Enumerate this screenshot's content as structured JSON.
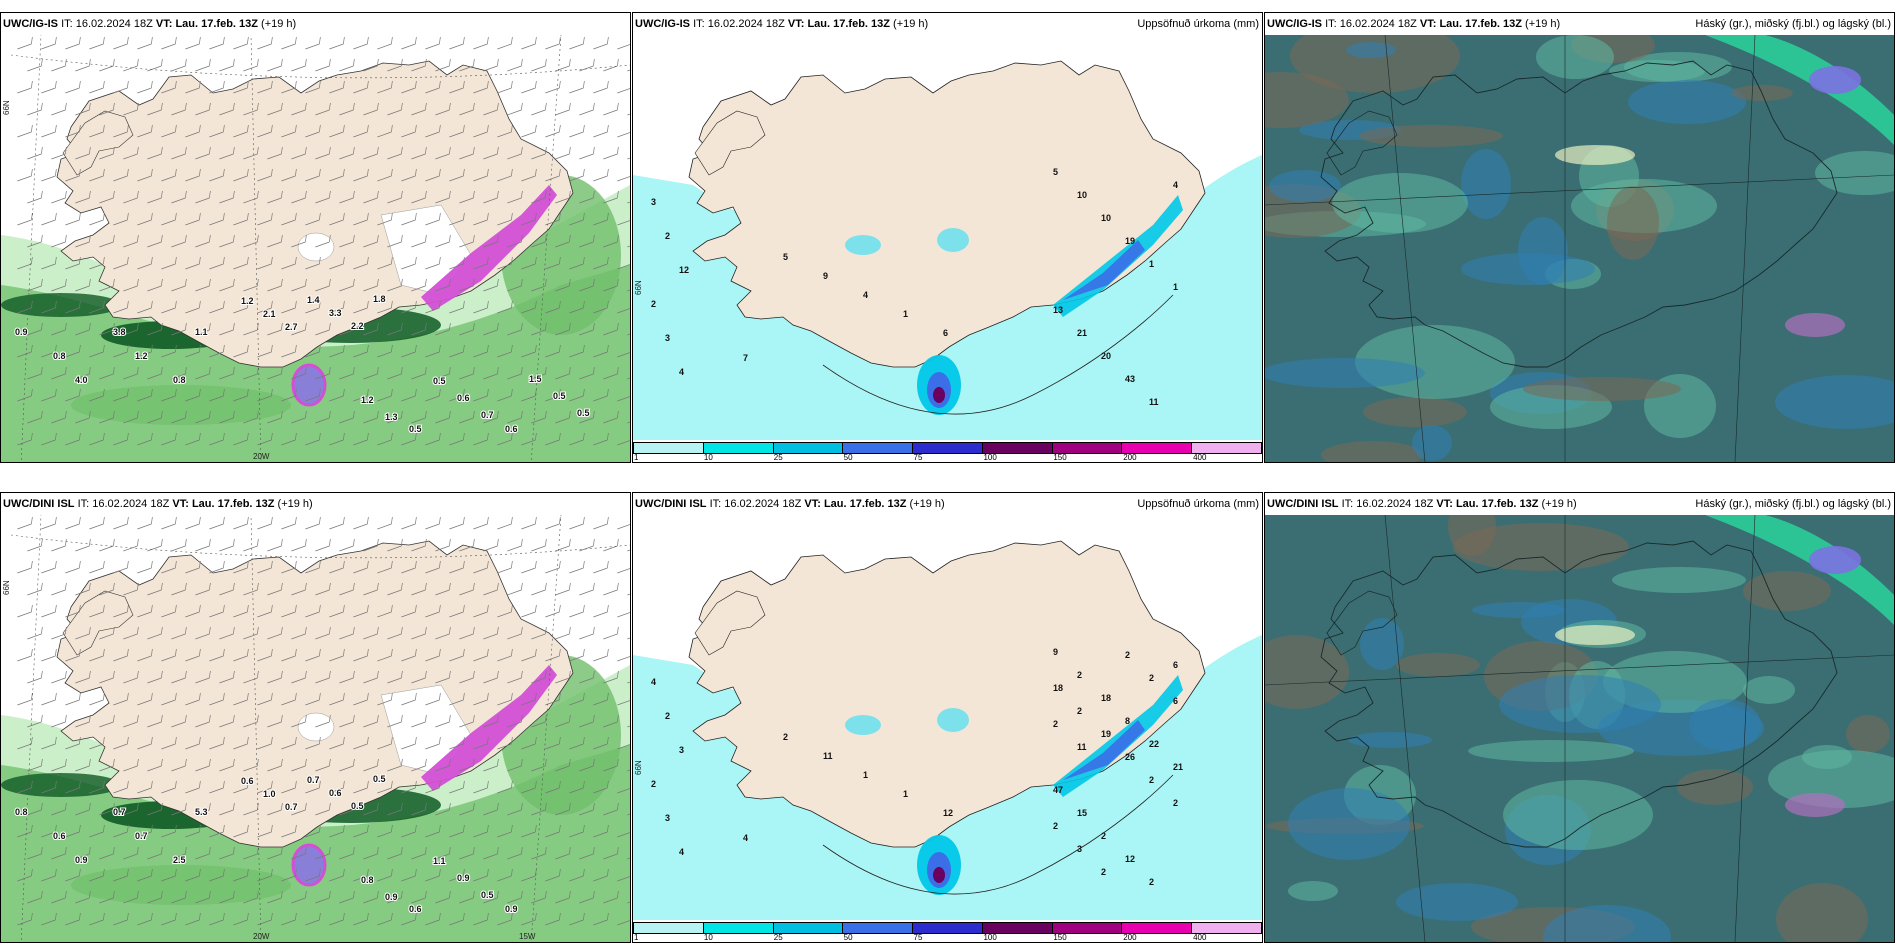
{
  "page": {
    "panels": [
      {
        "id": "r1c1",
        "type": "wind",
        "model": "UWC/IG-IS",
        "it_label": "IT:",
        "it_value": "16.02.2024 18Z",
        "vt_label": "VT:",
        "vt_value": "Lau. 17.feb. 13Z",
        "lead": "(+19 h)",
        "title_right": "",
        "lat_label": "66N",
        "lon_label": "20W",
        "values": [
          "0.9",
          "0.8",
          "4.0",
          "3.8",
          "1.2",
          "0.8",
          "1.1",
          "1.2",
          "2.1",
          "2.7",
          "1.4",
          "3.3",
          "2.2",
          "1.8",
          "1.2",
          "1.3",
          "0.5",
          "0.5",
          "0.6",
          "0.7",
          "0.6",
          "1.5",
          "0.5",
          "0.5"
        ]
      },
      {
        "id": "r1c2",
        "type": "precip",
        "model": "UWC/IG-IS",
        "it_label": "IT:",
        "it_value": "16.02.2024 18Z",
        "vt_label": "VT:",
        "vt_value": "Lau. 17.feb. 13Z",
        "lead": "(+19 h)",
        "title_right": "Uppsöfnuð úrkoma (mm)",
        "lat_label": "66N",
        "values": [
          "3",
          "2",
          "12",
          "2",
          "3",
          "4",
          "7",
          "5",
          "9",
          "4",
          "1",
          "6",
          "5",
          "10",
          "10",
          "19",
          "1",
          "1",
          "13",
          "21",
          "20",
          "43",
          "11",
          "4"
        ]
      },
      {
        "id": "r1c3",
        "type": "cloud",
        "model": "UWC/IG-IS",
        "it_label": "IT:",
        "it_value": "16.02.2024 18Z",
        "vt_label": "VT:",
        "vt_value": "Lau. 17.feb. 13Z",
        "lead": "(+19 h)",
        "title_right": "Háský (gr.), miðský (fj.bl.) og lágský (bl.)",
        "values": []
      },
      {
        "id": "r2c1",
        "type": "wind",
        "model": "UWC/DINI ISL",
        "it_label": "IT:",
        "it_value": "16.02.2024 18Z",
        "vt_label": "VT:",
        "vt_value": "Lau. 17.feb. 13Z",
        "lead": "(+19 h)",
        "title_right": "",
        "lat_label": "66N",
        "lon_label": "20W",
        "lon_label_2": "15W",
        "values": [
          "0.8",
          "0.6",
          "0.9",
          "0.7",
          "0.7",
          "2.5",
          "5.3",
          "0.6",
          "1.0",
          "0.7",
          "0.7",
          "0.6",
          "0.5",
          "0.5",
          "0.8",
          "0.9",
          "0.6",
          "1.1",
          "0.9",
          "0.5",
          "0.9"
        ]
      },
      {
        "id": "r2c2",
        "type": "precip",
        "model": "UWC/DINI ISL",
        "it_label": "IT:",
        "it_value": "16.02.2024 18Z",
        "vt_label": "VT:",
        "vt_value": "Lau. 17.feb. 13Z",
        "lead": "(+19 h)",
        "title_right": "Uppsöfnuð úrkoma (mm)",
        "lat_label": "66N",
        "values": [
          "4",
          "2",
          "3",
          "2",
          "3",
          "4",
          "4",
          "2",
          "11",
          "1",
          "1",
          "12",
          "9",
          "2",
          "18",
          "8",
          "22",
          "21",
          "47",
          "15",
          "2",
          "12",
          "2",
          "6",
          "18",
          "2",
          "19",
          "26",
          "2",
          "2",
          "2",
          "3",
          "2",
          "2",
          "2",
          "6",
          "2",
          "11"
        ]
      },
      {
        "id": "r2c3",
        "type": "cloud",
        "model": "UWC/DINI ISL",
        "it_label": "IT:",
        "it_value": "16.02.2024 18Z",
        "vt_label": "VT:",
        "vt_value": "Lau. 17.feb. 13Z",
        "lead": "(+19 h)",
        "title_right": "Háský (gr.), miðský (fj.bl.) og lágský (bl.)",
        "values": []
      }
    ]
  },
  "colorbar": {
    "ticks": [
      "1",
      "10",
      "25",
      "50",
      "75",
      "100",
      "150",
      "200",
      "400"
    ],
    "colors": [
      "#b8f3f3",
      "#00e5e5",
      "#00bfe0",
      "#3a6fe8",
      "#2c2ccf",
      "#6a0060",
      "#a0007f",
      "#e800b0",
      "#f0b0f0"
    ]
  },
  "colors": {
    "land": "#f4e6d6",
    "sea_white": "#ffffff",
    "precip_light": "#aaf5f5",
    "wind_green_light": "#c8eec6",
    "wind_green_mid": "#6fbf6a",
    "wind_green_dark": "#0f5a25",
    "magenta": "#d24fd6",
    "cloud_base": "#3a6e73",
    "cloud_teal": "#5fb8a0",
    "cloud_blue": "#2f7fb5",
    "cloud_green": "#2ad39a"
  }
}
